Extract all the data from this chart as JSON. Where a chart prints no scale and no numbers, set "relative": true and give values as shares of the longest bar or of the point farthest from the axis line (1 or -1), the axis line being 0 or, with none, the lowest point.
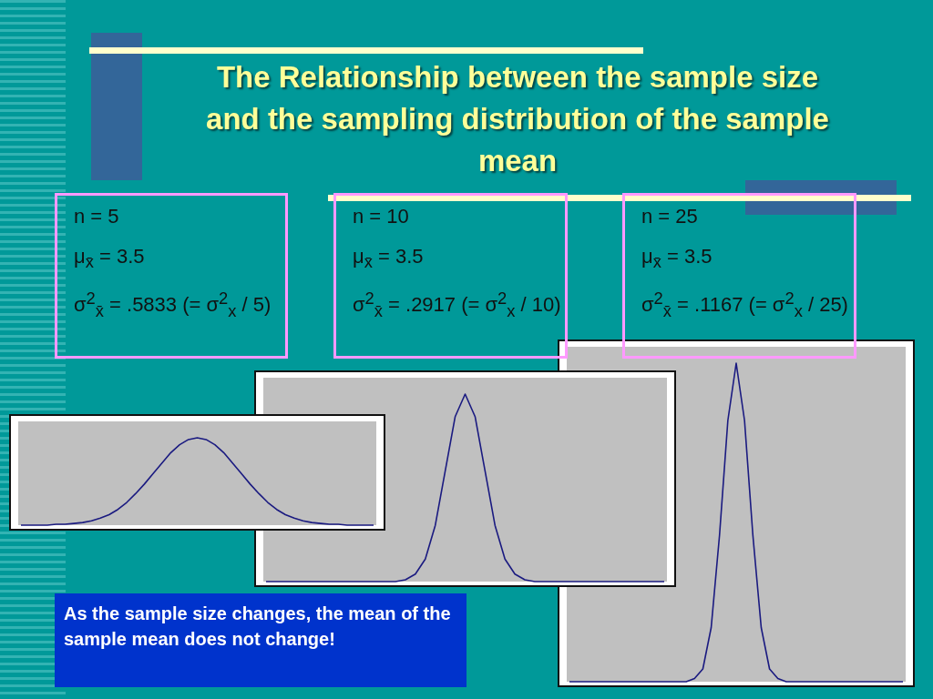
{
  "chart_data": [
    {
      "type": "line",
      "title": "The Relationship between the sample size and the sampling distribution of the sample mean",
      "relative": true,
      "categories": [
        null,
        null,
        null,
        null,
        null,
        null,
        null,
        null,
        null,
        null,
        null,
        null,
        null,
        null,
        null,
        null,
        null,
        null,
        null,
        null,
        null,
        null,
        null,
        null,
        null,
        null,
        null,
        null,
        null,
        null,
        null,
        null,
        null,
        null,
        null,
        null,
        null,
        null,
        null,
        null,
        null
      ],
      "series": [
        {
          "color": "#1a1a80",
          "values": [
            0,
            0,
            0,
            0,
            0.01,
            0.01,
            0.02,
            0.03,
            0.05,
            0.08,
            0.12,
            0.18,
            0.26,
            0.36,
            0.47,
            0.59,
            0.71,
            0.83,
            0.92,
            0.98,
            1,
            0.98,
            0.92,
            0.83,
            0.71,
            0.59,
            0.47,
            0.36,
            0.26,
            0.18,
            0.12,
            0.08,
            0.05,
            0.03,
            0.02,
            0.01,
            0.01,
            0,
            0,
            0,
            0
          ]
        }
      ],
      "annotations": [
        "n = 5",
        "μ$_{x̄}$ = 3.5",
        "σ$^{2}$$_{x̄}$ = .5833 (= σ$^{2}$$_{x}$ / 5)",
        "As the sample size changes, the mean of the sample mean does not change!"
      ]
    },
    {
      "type": "line",
      "relative": true,
      "categories": [
        null,
        null,
        null,
        null,
        null,
        null,
        null,
        null,
        null,
        null,
        null,
        null,
        null,
        null,
        null,
        null,
        null,
        null,
        null,
        null,
        null,
        null,
        null,
        null,
        null,
        null,
        null,
        null,
        null,
        null,
        null,
        null,
        null,
        null,
        null,
        null,
        null,
        null,
        null,
        null,
        null
      ],
      "series": [
        {
          "color": "#1a1a80",
          "values": [
            0,
            0,
            0,
            0,
            0,
            0,
            0,
            0,
            0,
            0,
            0,
            0,
            0,
            0,
            0.01,
            0.04,
            0.12,
            0.3,
            0.59,
            0.88,
            1,
            0.88,
            0.59,
            0.3,
            0.12,
            0.04,
            0.01,
            0,
            0,
            0,
            0,
            0,
            0,
            0,
            0,
            0,
            0,
            0,
            0,
            0,
            0
          ]
        }
      ],
      "annotations": [
        "n = 10",
        "μ$_{x̄}$ = 3.5",
        "σ$^{2}$$_{x̄}$ = .2917 (= σ$^{2}$$_{x}$ / 10)"
      ]
    },
    {
      "type": "line",
      "relative": true,
      "categories": [
        null,
        null,
        null,
        null,
        null,
        null,
        null,
        null,
        null,
        null,
        null,
        null,
        null,
        null,
        null,
        null,
        null,
        null,
        null,
        null,
        null,
        null,
        null,
        null,
        null,
        null,
        null,
        null,
        null,
        null,
        null,
        null,
        null,
        null,
        null,
        null,
        null,
        null,
        null,
        null,
        null
      ],
      "series": [
        {
          "color": "#1a1a80",
          "values": [
            0,
            0,
            0,
            0,
            0,
            0,
            0,
            0,
            0,
            0,
            0,
            0,
            0,
            0,
            0,
            0.01,
            0.04,
            0.17,
            0.46,
            0.82,
            1,
            0.82,
            0.46,
            0.17,
            0.04,
            0.01,
            0,
            0,
            0,
            0,
            0,
            0,
            0,
            0,
            0,
            0,
            0,
            0,
            0,
            0,
            0
          ]
        }
      ],
      "annotations": [
        "n = 25",
        "μ$_{x̄}$ = 3.5",
        "σ$^{2}$$_{x̄}$ = .1167 (= σ$^{2}$$_{x}$ / 25)"
      ]
    }
  ]
}
